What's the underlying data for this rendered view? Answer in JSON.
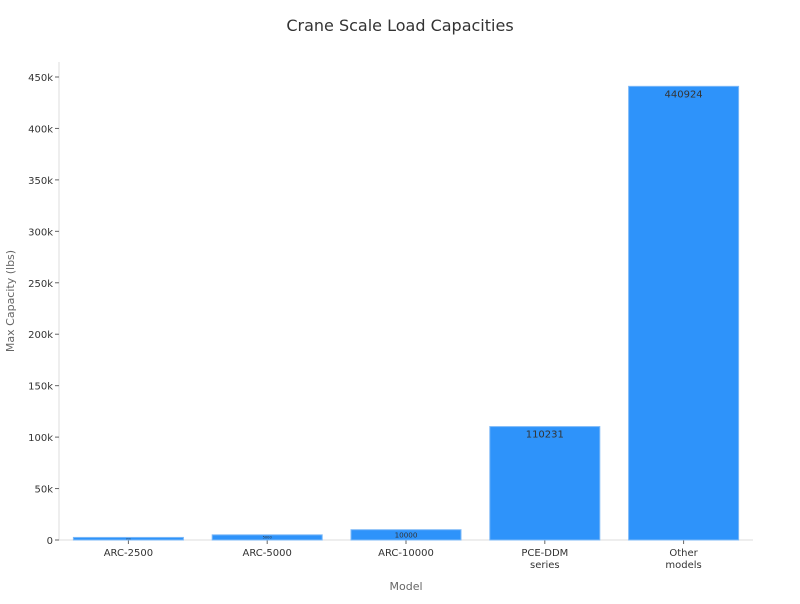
{
  "chart_data": {
    "type": "bar",
    "title": "Crane Scale Load Capacities",
    "xlabel": "Model",
    "ylabel": "Max Capacity (lbs)",
    "categories": [
      [
        "ARC-2500"
      ],
      [
        "ARC-5000"
      ],
      [
        "ARC-10000"
      ],
      [
        "PCE-DDM",
        "series"
      ],
      [
        "Other",
        "models"
      ]
    ],
    "values": [
      2500,
      5000,
      10000,
      110231,
      440924
    ],
    "data_labels": [
      "2500",
      "5000",
      "10000",
      "110231",
      "440924"
    ],
    "ylim": [
      0,
      450000
    ],
    "yticks": [
      0,
      50000,
      100000,
      150000,
      200000,
      250000,
      300000,
      350000,
      400000,
      450000
    ],
    "ytick_labels": [
      "0",
      "50k",
      "100k",
      "150k",
      "200k",
      "250k",
      "300k",
      "350k",
      "400k",
      "450k"
    ],
    "grid": false,
    "bar_color": "#2e93fa"
  }
}
